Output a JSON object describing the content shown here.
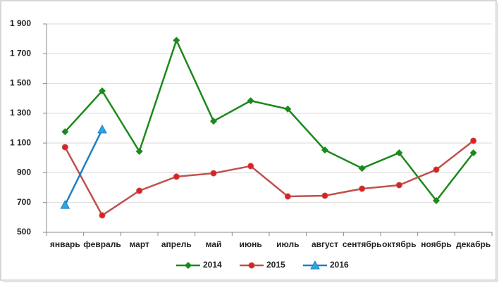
{
  "chart_data": {
    "type": "line",
    "categories": [
      "январь",
      "февраль",
      "март",
      "апрель",
      "май",
      "июнь",
      "июль",
      "август",
      "сентябрь",
      "октябрь",
      "ноябрь",
      "декабрь"
    ],
    "series": [
      {
        "name": "2014",
        "color": "#1a8a1a",
        "marker": "diamond",
        "values": [
          1176,
          1450,
          1044,
          1790,
          1247,
          1384,
          1328,
          1053,
          930,
          1034,
          713,
          1034
        ]
      },
      {
        "name": "2015",
        "color": "#c0504d",
        "marker": "circle",
        "values": [
          1072,
          614,
          779,
          874,
          897,
          945,
          741,
          746,
          793,
          817,
          921,
          1115
        ]
      },
      {
        "name": "2016",
        "color": "#1f7fc4",
        "marker": "triangle",
        "values": [
          684,
          1191,
          null,
          null,
          null,
          null,
          null,
          null,
          null,
          null,
          null,
          null
        ]
      }
    ],
    "ylim": [
      500,
      1900
    ],
    "yticks": [
      500,
      700,
      900,
      {
        "value": 1100,
        "label": "1 100"
      },
      {
        "value": 1300,
        "label": "1 300"
      },
      {
        "value": 1500,
        "label": "1 500"
      },
      {
        "value": 1700,
        "label": "1 700"
      },
      {
        "value": 1900,
        "label": "1 900"
      }
    ],
    "grid": true,
    "legend": "bottom"
  }
}
